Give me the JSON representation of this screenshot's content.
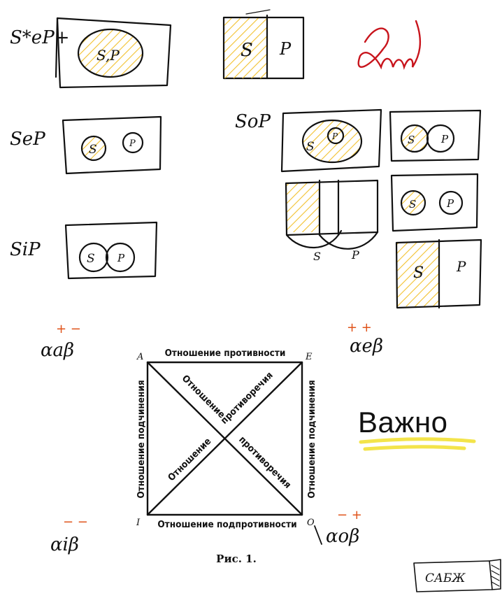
{
  "sketches": {
    "row1_left": {
      "label": "S*eP+",
      "inner": "S,P"
    },
    "row1_mid": {
      "s": "S",
      "p": "P"
    },
    "row2_left": {
      "label": "SeP",
      "s": "S",
      "p": "P"
    },
    "row3_left": {
      "label": "SiP",
      "s": "S",
      "p": "P"
    },
    "sop": {
      "label": "SoP",
      "box_a": {
        "s": "S",
        "p": "P"
      },
      "box_b": {
        "s": "S",
        "p": "P"
      },
      "box_d": {
        "s": "S",
        "p": "P"
      },
      "box_e": {
        "s": "S",
        "p": "P"
      },
      "under_s": "S",
      "under_p": "P"
    }
  },
  "formulas": {
    "a": {
      "base": "αaβ",
      "signs": "+ −"
    },
    "e": {
      "base": "αeβ",
      "signs": "+ +"
    },
    "i": {
      "base": "αiβ",
      "signs": "− −"
    },
    "o": {
      "base": "αoβ",
      "signs": "− +"
    }
  },
  "square": {
    "corners": {
      "a": "A",
      "e": "E",
      "i": "I",
      "o": "O"
    },
    "top": "Отношение противности",
    "bottom": "Отношение подпротивности",
    "left": "Отношение подчинения",
    "right": "Отношение подчинения",
    "diag_upper_left": "Отношение",
    "diag_upper_right": "противоречия",
    "diag_lower_left": "Отношение",
    "diag_lower_right": "противоречия",
    "caption": "Рис. 1."
  },
  "important_note": "Важно",
  "stamp": "САБЖ",
  "colors": {
    "hatch": "#f2c12e",
    "sign": "#e0531a",
    "signature": "#c8141c",
    "highlight": "#f3e44a",
    "ink": "#111111"
  }
}
